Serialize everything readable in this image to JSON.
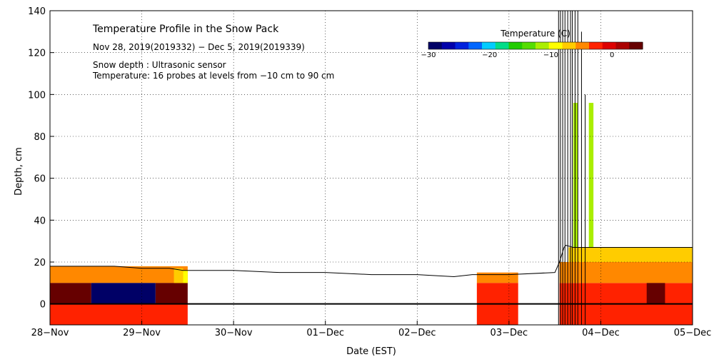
{
  "chart_data": {
    "type": "heatmap",
    "title": "Temperature Profile in the Snow Pack",
    "subtitle": "Nov 28, 2019(2019332) − Dec  5, 2019(2019339)",
    "notes": [
      "Snow depth : Ultrasonic sensor",
      "Temperature: 16 probes at levels from −10 cm to 90 cm"
    ],
    "xlabel": "Date (EST)",
    "ylabel": "Depth, cm",
    "x_unit": "days since 28-Nov 00:00 EST",
    "xlim": [
      0,
      7
    ],
    "ylim": [
      -10,
      140
    ],
    "x_ticks": [
      {
        "x": 0,
        "label": "28−Nov"
      },
      {
        "x": 1,
        "label": "29−Nov"
      },
      {
        "x": 2,
        "label": "30−Nov"
      },
      {
        "x": 3,
        "label": "01−Dec"
      },
      {
        "x": 4,
        "label": "02−Dec"
      },
      {
        "x": 5,
        "label": "03−Dec"
      },
      {
        "x": 6,
        "label": "04−Dec"
      },
      {
        "x": 7,
        "label": "05−Dec"
      }
    ],
    "y_ticks": [
      0,
      20,
      40,
      60,
      80,
      100,
      120,
      140
    ],
    "grid": true,
    "colorbar": {
      "title": "Temperature (C)",
      "range": [
        -30,
        5
      ],
      "tick_values": [
        -30,
        -20,
        -10,
        0
      ],
      "tick_labels": [
        "−30",
        "−20",
        "−10",
        "0"
      ],
      "colors": [
        "#000066",
        "#0000aa",
        "#0022dd",
        "#0066ff",
        "#00ccff",
        "#00dd88",
        "#22cc00",
        "#55dd00",
        "#aaee00",
        "#ffff00",
        "#ffcc00",
        "#ff8800",
        "#ff2200",
        "#dd0000",
        "#aa0000",
        "#660000"
      ]
    },
    "snow_depth": {
      "x": [
        0,
        0.3,
        0.7,
        1.0,
        1.3,
        1.45,
        1.5,
        2.0,
        2.5,
        3.0,
        3.5,
        4.0,
        4.4,
        4.6,
        5.0,
        5.5,
        5.55,
        5.6,
        5.62,
        5.7,
        6.0,
        6.5,
        7.0
      ],
      "y": [
        18,
        18,
        18,
        17,
        17,
        16,
        16,
        16,
        15,
        15,
        14,
        14,
        13,
        14,
        14,
        15,
        20,
        27,
        28,
        27,
        27,
        27,
        27
      ]
    },
    "sensor_spikes": [
      {
        "x": 5.54,
        "y": 140
      },
      {
        "x": 5.56,
        "y": 140
      },
      {
        "x": 5.585,
        "y": 140
      },
      {
        "x": 5.61,
        "y": 140
      },
      {
        "x": 5.64,
        "y": 140
      },
      {
        "x": 5.67,
        "y": 140
      },
      {
        "x": 5.69,
        "y": 140
      },
      {
        "x": 5.72,
        "y": 140
      },
      {
        "x": 5.75,
        "y": 140
      },
      {
        "x": 5.79,
        "y": 130
      },
      {
        "x": 5.83,
        "y": 100
      }
    ],
    "temperature_cells": [
      {
        "x0": 0,
        "x1": 1.5,
        "y0": 10,
        "y1": 18,
        "t": -4
      },
      {
        "x0": 0,
        "x1": 0.45,
        "y0": 0,
        "y1": 10,
        "t": 3
      },
      {
        "x0": 0.45,
        "x1": 1.15,
        "y0": 0,
        "y1": 10,
        "t": -32
      },
      {
        "x0": 1.15,
        "x1": 1.5,
        "y0": 0,
        "y1": 10,
        "t": 3
      },
      {
        "x0": 0,
        "x1": 1.5,
        "y0": -10,
        "y1": 0,
        "t": -2
      },
      {
        "x0": 1.35,
        "x1": 1.45,
        "y0": 10,
        "y1": 17,
        "t": -8
      },
      {
        "x0": 1.45,
        "x1": 1.5,
        "y0": 10,
        "y1": 16,
        "t": -10
      },
      {
        "x0": 4.65,
        "x1": 5.1,
        "y0": 10,
        "y1": 15,
        "t": -5
      },
      {
        "x0": 4.65,
        "x1": 5.1,
        "y0": -10,
        "y1": 10,
        "t": -2
      },
      {
        "x0": 5.55,
        "x1": 7.0,
        "y0": -10,
        "y1": 10,
        "t": -2
      },
      {
        "x0": 5.55,
        "x1": 7.0,
        "y0": 10,
        "y1": 20,
        "t": -4
      },
      {
        "x0": 5.65,
        "x1": 7.0,
        "y0": 20,
        "y1": 27,
        "t": -6
      },
      {
        "x0": 5.7,
        "x1": 5.75,
        "y0": 27,
        "y1": 96,
        "t": -11
      },
      {
        "x0": 5.87,
        "x1": 5.92,
        "y0": 27,
        "y1": 96,
        "t": -11
      },
      {
        "x0": 6.5,
        "x1": 6.7,
        "y0": 0,
        "y1": 10,
        "t": 3
      }
    ]
  }
}
